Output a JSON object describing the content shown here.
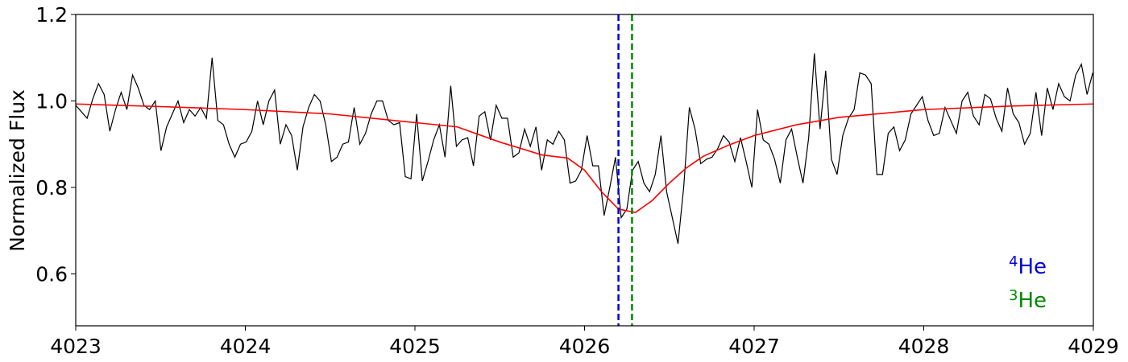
{
  "chart_data": {
    "type": "line",
    "y_label": "Normalized Flux",
    "xlim": [
      4023,
      4029
    ],
    "xticks": [
      4023,
      4024,
      4025,
      4026,
      4027,
      4028,
      4029
    ],
    "ylim": [
      0.48,
      1.2
    ],
    "yticks": [
      0.6,
      0.8,
      {
        "value": 1,
        "label": "1.0"
      },
      1.2
    ],
    "grid": false,
    "x": [
      4023,
      4023.0335,
      4023.067,
      4023.1005,
      4023.134,
      4023.1675,
      4023.201,
      4023.2345,
      4023.268,
      4023.3015,
      4023.335,
      4023.3685,
      4023.402,
      4023.4355,
      4023.469,
      4023.5025,
      4023.536,
      4023.5695,
      4023.603,
      4023.6365,
      4023.67,
      4023.7035,
      4023.737,
      4023.7705,
      4023.804,
      4023.8375,
      4023.871,
      4023.9045,
      4023.938,
      4023.9715,
      4024.005,
      4024.0385,
      4024.072,
      4024.1055,
      4024.139,
      4024.1725,
      4024.206,
      4024.2395,
      4024.273,
      4024.3065,
      4024.34,
      4024.3735,
      4024.407,
      4024.4405,
      4024.474,
      4024.5075,
      4024.541,
      4024.5745,
      4024.608,
      4024.6415,
      4024.675,
      4024.7085,
      4024.742,
      4024.7755,
      4024.809,
      4024.8425,
      4024.876,
      4024.9095,
      4024.943,
      4024.9765,
      4025.01,
      4025.0435,
      4025.077,
      4025.1105,
      4025.144,
      4025.1775,
      4025.211,
      4025.2445,
      4025.278,
      4025.3115,
      4025.345,
      4025.3785,
      4025.412,
      4025.4455,
      4025.479,
      4025.5125,
      4025.546,
      4025.5795,
      4025.613,
      4025.6465,
      4025.68,
      4025.7135,
      4025.747,
      4025.7805,
      4025.814,
      4025.8475,
      4025.881,
      4025.9145,
      4025.948,
      4025.9815,
      4026.015,
      4026.0485,
      4026.082,
      4026.1155,
      4026.149,
      4026.1825,
      4026.216,
      4026.2495,
      4026.283,
      4026.3165,
      4026.35,
      4026.3835,
      4026.417,
      4026.4505,
      4026.484,
      4026.5175,
      4026.551,
      4026.5845,
      4026.618,
      4026.6515,
      4026.685,
      4026.7185,
      4026.752,
      4026.7855,
      4026.819,
      4026.8525,
      4026.886,
      4026.9195,
      4026.953,
      4026.9865,
      4027.02,
      4027.0535,
      4027.087,
      4027.1205,
      4027.154,
      4027.1875,
      4027.221,
      4027.2545,
      4027.288,
      4027.3215,
      4027.355,
      4027.3885,
      4027.422,
      4027.4555,
      4027.489,
      4027.5225,
      4027.556,
      4027.5895,
      4027.623,
      4027.6565,
      4027.69,
      4027.7235,
      4027.757,
      4027.7905,
      4027.824,
      4027.8575,
      4027.891,
      4027.9245,
      4027.958,
      4027.9915,
      4028.025,
      4028.0585,
      4028.092,
      4028.1255,
      4028.159,
      4028.1925,
      4028.226,
      4028.2595,
      4028.293,
      4028.3265,
      4028.36,
      4028.3935,
      4028.427,
      4028.4605,
      4028.494,
      4028.5275,
      4028.561,
      4028.5945,
      4028.628,
      4028.6615,
      4028.695,
      4028.7285,
      4028.762,
      4028.7955,
      4028.829,
      4028.8625,
      4028.896,
      4028.9295,
      4028.963,
      4028.9965
    ],
    "series": [
      {
        "color": "#000000",
        "values": [
          0.99,
          0.975,
          0.96,
          1.005,
          1.04,
          1.015,
          0.93,
          0.98,
          1.02,
          0.98,
          1.06,
          1.03,
          0.99,
          0.98,
          1.0,
          0.885,
          0.94,
          0.97,
          1.0,
          0.95,
          0.98,
          0.965,
          0.985,
          0.96,
          1.1,
          0.955,
          0.945,
          0.9,
          0.87,
          0.9,
          0.905,
          0.93,
          1.0,
          0.945,
          1.0,
          1.025,
          0.9,
          0.945,
          0.92,
          0.84,
          0.94,
          0.985,
          1.015,
          1.0,
          0.945,
          0.86,
          0.87,
          0.9,
          0.905,
          0.985,
          0.9,
          0.925,
          0.97,
          1.0,
          1.0,
          0.955,
          0.945,
          0.95,
          0.825,
          0.82,
          0.97,
          0.815,
          0.86,
          0.91,
          0.945,
          0.87,
          1.035,
          0.895,
          0.91,
          0.915,
          0.85,
          0.965,
          0.975,
          0.91,
          0.99,
          0.96,
          0.96,
          0.87,
          0.88,
          0.935,
          0.895,
          0.94,
          0.84,
          0.91,
          0.9,
          0.93,
          0.91,
          0.81,
          0.815,
          0.84,
          0.92,
          0.85,
          0.85,
          0.735,
          0.8,
          0.87,
          0.73,
          0.75,
          0.84,
          0.86,
          0.81,
          0.79,
          0.83,
          0.92,
          0.79,
          0.73,
          0.67,
          0.8,
          0.985,
          0.935,
          0.855,
          0.865,
          0.87,
          0.89,
          0.92,
          0.905,
          0.86,
          0.915,
          0.86,
          0.8,
          0.98,
          0.91,
          0.9,
          0.865,
          0.81,
          0.91,
          0.935,
          0.87,
          0.81,
          0.915,
          1.11,
          0.935,
          1.07,
          0.865,
          0.83,
          0.92,
          0.96,
          0.98,
          1.065,
          1.06,
          1.04,
          0.83,
          0.83,
          0.925,
          0.94,
          0.885,
          0.91,
          0.97,
          0.99,
          1.01,
          0.955,
          0.92,
          0.925,
          0.985,
          0.955,
          0.925,
          1.0,
          1.02,
          0.965,
          0.945,
          1.015,
          1.005,
          0.96,
          0.93,
          1.03,
          0.97,
          0.95,
          0.9,
          0.925,
          1.02,
          0.92,
          1.03,
          0.98,
          1.04,
          1.01,
          1.0,
          1.06,
          1.085,
          1.015,
          1.065
        ]
      },
      {
        "color": "#ff0000",
        "x": [
          4023,
          4023.5,
          4024,
          4024.5,
          4025,
          4025.25,
          4025.5,
          4025.75,
          4025.9,
          4026,
          4026.1,
          4026.2,
          4026.3,
          4026.4,
          4026.5,
          4026.6,
          4026.7,
          4026.85,
          4027,
          4027.25,
          4027.5,
          4028,
          4028.5,
          4029
        ],
        "values": [
          0.993,
          0.987,
          0.98,
          0.97,
          0.95,
          0.94,
          0.905,
          0.875,
          0.868,
          0.84,
          0.79,
          0.75,
          0.742,
          0.77,
          0.81,
          0.845,
          0.872,
          0.898,
          0.92,
          0.945,
          0.962,
          0.98,
          0.988,
          0.993
        ]
      }
    ],
    "vlines": [
      {
        "x": 4026.2,
        "color": "#0000dd"
      },
      {
        "x": 4026.28,
        "color": "#008800"
      }
    ],
    "annotations": [
      {
        "sup": "4",
        "text": "He",
        "color": "#0000dd"
      },
      {
        "sup": "3",
        "text": "He",
        "color": "#008800"
      }
    ]
  }
}
